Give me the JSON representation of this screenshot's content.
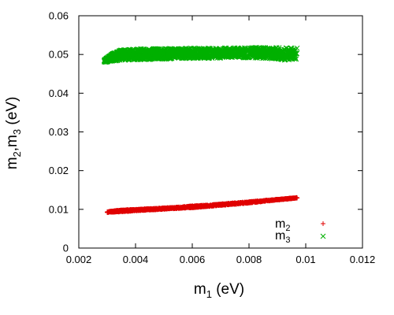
{
  "chart_data": {
    "type": "scatter",
    "title": "",
    "xlabel": {
      "main": "m",
      "sub": "1",
      "tail": " (eV)"
    },
    "ylabel": {
      "p1": "m",
      "s1": "2",
      "p2": ",m",
      "s2": "3",
      "tail": " (eV)"
    },
    "xlim": [
      0.002,
      0.012
    ],
    "ylim": [
      0,
      0.06
    ],
    "x_ticks": [
      0.002,
      0.004,
      0.006,
      0.008,
      0.01,
      0.012
    ],
    "x_tick_labels": [
      "0.002",
      "0.004",
      "0.006",
      "0.008",
      "0.01",
      "0.012"
    ],
    "y_ticks": [
      0,
      0.01,
      0.02,
      0.03,
      0.04,
      0.05,
      0.06
    ],
    "y_tick_labels": [
      "0",
      "0.01",
      "0.02",
      "0.03",
      "0.04",
      "0.05",
      "0.06"
    ],
    "grid": false,
    "legend_position": "bottom-right",
    "series": [
      {
        "key": "m2",
        "label_main": "m",
        "label_sub": "2",
        "marker": "plus",
        "color": "#e00000",
        "x": [
          0.003,
          0.0033,
          0.0036,
          0.004,
          0.0045,
          0.005,
          0.0055,
          0.006,
          0.0065,
          0.007,
          0.0075,
          0.008,
          0.0085,
          0.009,
          0.0093,
          0.0097
        ],
        "y_min": [
          0.0092,
          0.0093,
          0.0094,
          0.0096,
          0.0098,
          0.01,
          0.0102,
          0.0104,
          0.0107,
          0.011,
          0.0113,
          0.0116,
          0.012,
          0.0124,
          0.0126,
          0.0129
        ],
        "y_max": [
          0.0094,
          0.0097,
          0.0099,
          0.01,
          0.0102,
          0.0104,
          0.0106,
          0.0109,
          0.0111,
          0.0114,
          0.0117,
          0.012,
          0.0123,
          0.0126,
          0.0128,
          0.0131
        ]
      },
      {
        "key": "m3",
        "label_main": "m",
        "label_sub": "3",
        "marker": "cross",
        "color": "#00b000",
        "x": [
          0.0029,
          0.0032,
          0.0035,
          0.004,
          0.0045,
          0.005,
          0.0055,
          0.006,
          0.0065,
          0.007,
          0.0075,
          0.008,
          0.0085,
          0.009,
          0.0093,
          0.0097
        ],
        "y_min": [
          0.048,
          0.0483,
          0.0485,
          0.0486,
          0.0487,
          0.0488,
          0.0489,
          0.049,
          0.049,
          0.0491,
          0.0491,
          0.0491,
          0.049,
          0.0488,
          0.0485,
          0.0487
        ],
        "y_max": [
          0.0486,
          0.0503,
          0.0512,
          0.0514,
          0.0515,
          0.0515,
          0.0516,
          0.0516,
          0.0516,
          0.0517,
          0.0517,
          0.0518,
          0.0518,
          0.0518,
          0.0517,
          0.0518
        ]
      }
    ]
  }
}
